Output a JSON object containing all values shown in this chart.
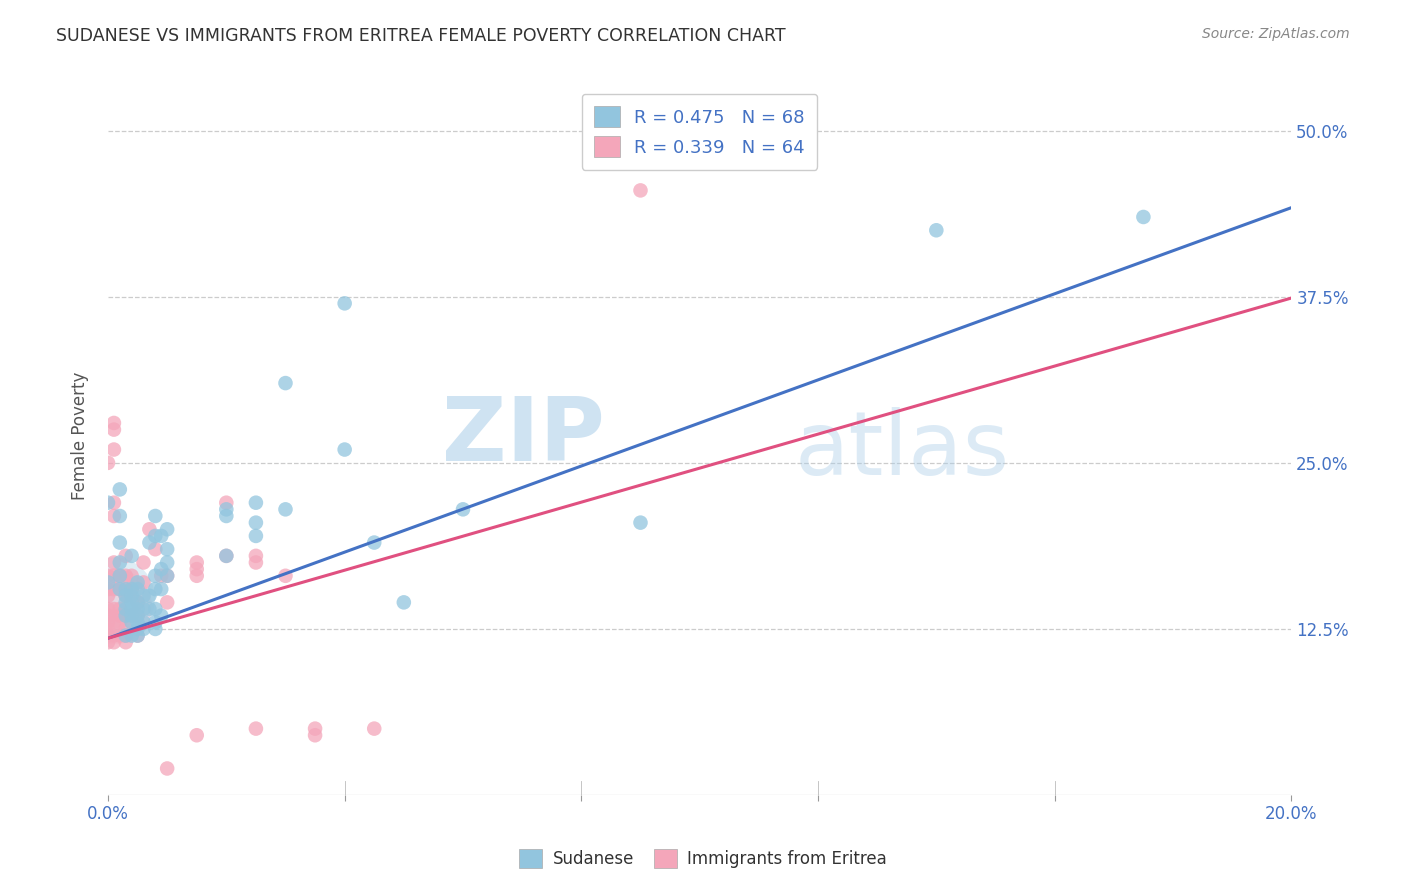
{
  "title": "SUDANESE VS IMMIGRANTS FROM ERITREA FEMALE POVERTY CORRELATION CHART",
  "source": "Source: ZipAtlas.com",
  "ylabel": "Female Poverty",
  "y_ticks": [
    0.125,
    0.25,
    0.375,
    0.5
  ],
  "y_tick_labels": [
    "12.5%",
    "25.0%",
    "37.5%",
    "50.0%"
  ],
  "xlim": [
    0.0,
    0.2
  ],
  "ylim": [
    0.0,
    0.54
  ],
  "legend_text_1": "R = 0.475   N = 68",
  "legend_text_2": "R = 0.339   N = 64",
  "watermark_zip": "ZIP",
  "watermark_atlas": "atlas",
  "blue_scatter_color": "#92C5DE",
  "pink_scatter_color": "#F4A6BA",
  "blue_line_color": "#4472C4",
  "pink_line_color": "#E05080",
  "title_color": "#333333",
  "label_color": "#4472C4",
  "sudanese_intercept": 0.118,
  "sudanese_slope": 1.62,
  "eritrea_intercept": 0.118,
  "eritrea_slope": 1.28,
  "sudanese_scatter": [
    [
      0.0,
      0.16
    ],
    [
      0.0,
      0.22
    ],
    [
      0.002,
      0.23
    ],
    [
      0.002,
      0.19
    ],
    [
      0.002,
      0.21
    ],
    [
      0.002,
      0.175
    ],
    [
      0.002,
      0.155
    ],
    [
      0.002,
      0.165
    ],
    [
      0.003,
      0.155
    ],
    [
      0.003,
      0.145
    ],
    [
      0.003,
      0.15
    ],
    [
      0.003,
      0.14
    ],
    [
      0.003,
      0.135
    ],
    [
      0.003,
      0.12
    ],
    [
      0.004,
      0.18
    ],
    [
      0.004,
      0.155
    ],
    [
      0.004,
      0.15
    ],
    [
      0.004,
      0.145
    ],
    [
      0.004,
      0.14
    ],
    [
      0.004,
      0.135
    ],
    [
      0.004,
      0.13
    ],
    [
      0.004,
      0.12
    ],
    [
      0.005,
      0.16
    ],
    [
      0.005,
      0.155
    ],
    [
      0.005,
      0.145
    ],
    [
      0.005,
      0.14
    ],
    [
      0.005,
      0.135
    ],
    [
      0.005,
      0.13
    ],
    [
      0.005,
      0.125
    ],
    [
      0.005,
      0.12
    ],
    [
      0.006,
      0.15
    ],
    [
      0.006,
      0.14
    ],
    [
      0.006,
      0.13
    ],
    [
      0.006,
      0.125
    ],
    [
      0.007,
      0.19
    ],
    [
      0.007,
      0.15
    ],
    [
      0.007,
      0.14
    ],
    [
      0.008,
      0.21
    ],
    [
      0.008,
      0.195
    ],
    [
      0.008,
      0.165
    ],
    [
      0.008,
      0.155
    ],
    [
      0.008,
      0.14
    ],
    [
      0.008,
      0.13
    ],
    [
      0.008,
      0.125
    ],
    [
      0.009,
      0.195
    ],
    [
      0.009,
      0.17
    ],
    [
      0.009,
      0.155
    ],
    [
      0.009,
      0.135
    ],
    [
      0.01,
      0.2
    ],
    [
      0.01,
      0.185
    ],
    [
      0.01,
      0.175
    ],
    [
      0.01,
      0.165
    ],
    [
      0.02,
      0.215
    ],
    [
      0.02,
      0.21
    ],
    [
      0.02,
      0.18
    ],
    [
      0.025,
      0.22
    ],
    [
      0.025,
      0.205
    ],
    [
      0.025,
      0.195
    ],
    [
      0.03,
      0.31
    ],
    [
      0.03,
      0.215
    ],
    [
      0.04,
      0.37
    ],
    [
      0.04,
      0.26
    ],
    [
      0.045,
      0.19
    ],
    [
      0.05,
      0.145
    ],
    [
      0.06,
      0.215
    ],
    [
      0.09,
      0.205
    ],
    [
      0.14,
      0.425
    ],
    [
      0.175,
      0.435
    ]
  ],
  "eritrea_scatter": [
    [
      0.0,
      0.25
    ],
    [
      0.0,
      0.165
    ],
    [
      0.0,
      0.155
    ],
    [
      0.0,
      0.15
    ],
    [
      0.0,
      0.14
    ],
    [
      0.0,
      0.135
    ],
    [
      0.0,
      0.13
    ],
    [
      0.0,
      0.125
    ],
    [
      0.0,
      0.12
    ],
    [
      0.0,
      0.115
    ],
    [
      0.001,
      0.28
    ],
    [
      0.001,
      0.275
    ],
    [
      0.001,
      0.26
    ],
    [
      0.001,
      0.22
    ],
    [
      0.001,
      0.21
    ],
    [
      0.001,
      0.175
    ],
    [
      0.001,
      0.165
    ],
    [
      0.001,
      0.155
    ],
    [
      0.001,
      0.14
    ],
    [
      0.001,
      0.13
    ],
    [
      0.001,
      0.12
    ],
    [
      0.001,
      0.115
    ],
    [
      0.002,
      0.165
    ],
    [
      0.002,
      0.155
    ],
    [
      0.002,
      0.14
    ],
    [
      0.002,
      0.135
    ],
    [
      0.002,
      0.13
    ],
    [
      0.002,
      0.12
    ],
    [
      0.003,
      0.18
    ],
    [
      0.003,
      0.165
    ],
    [
      0.003,
      0.155
    ],
    [
      0.003,
      0.15
    ],
    [
      0.003,
      0.135
    ],
    [
      0.003,
      0.125
    ],
    [
      0.003,
      0.12
    ],
    [
      0.003,
      0.115
    ],
    [
      0.004,
      0.165
    ],
    [
      0.004,
      0.155
    ],
    [
      0.004,
      0.135
    ],
    [
      0.005,
      0.145
    ],
    [
      0.005,
      0.135
    ],
    [
      0.005,
      0.12
    ],
    [
      0.006,
      0.175
    ],
    [
      0.006,
      0.16
    ],
    [
      0.007,
      0.2
    ],
    [
      0.008,
      0.185
    ],
    [
      0.009,
      0.165
    ],
    [
      0.01,
      0.165
    ],
    [
      0.01,
      0.145
    ],
    [
      0.015,
      0.175
    ],
    [
      0.015,
      0.17
    ],
    [
      0.015,
      0.165
    ],
    [
      0.02,
      0.22
    ],
    [
      0.02,
      0.18
    ],
    [
      0.025,
      0.18
    ],
    [
      0.025,
      0.175
    ],
    [
      0.03,
      0.165
    ],
    [
      0.035,
      0.05
    ],
    [
      0.035,
      0.045
    ],
    [
      0.045,
      0.05
    ],
    [
      0.015,
      0.045
    ],
    [
      0.025,
      0.05
    ],
    [
      0.01,
      0.02
    ],
    [
      0.09,
      0.455
    ]
  ]
}
